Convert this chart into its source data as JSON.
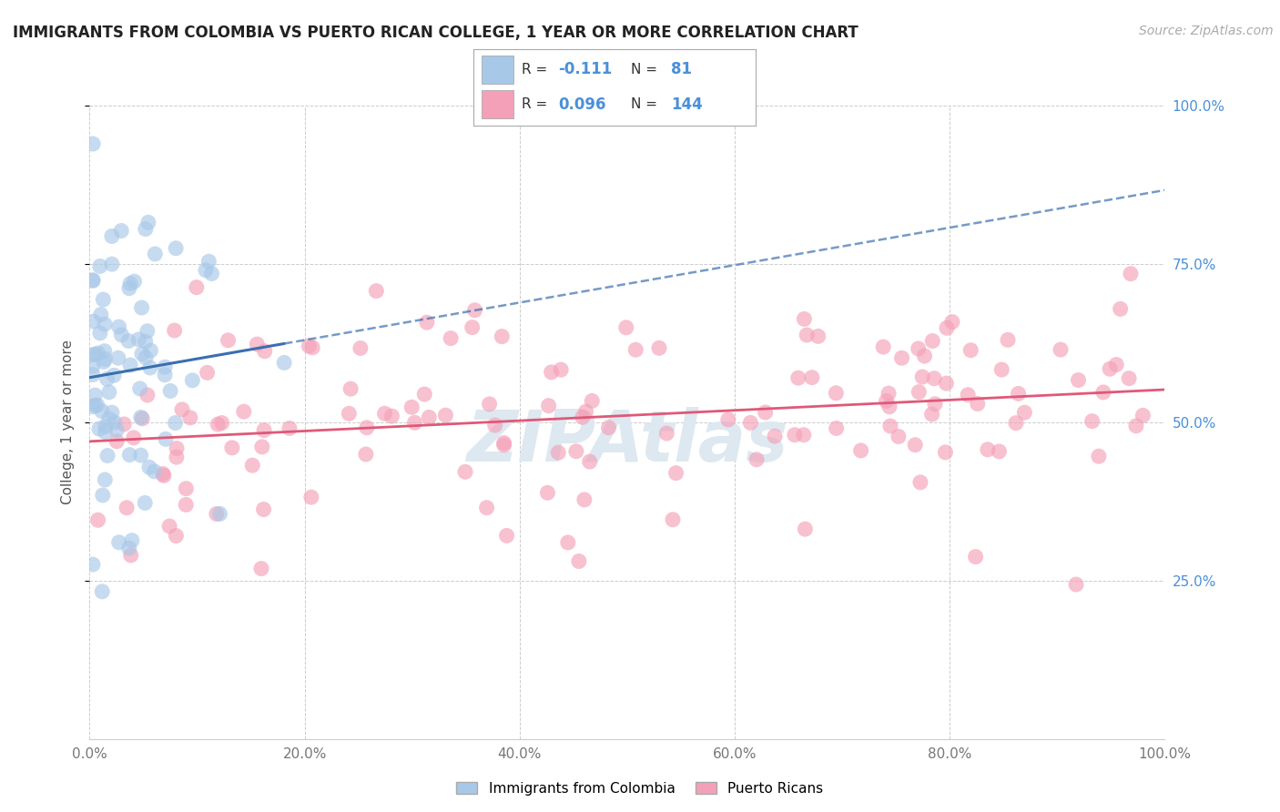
{
  "title": "IMMIGRANTS FROM COLOMBIA VS PUERTO RICAN COLLEGE, 1 YEAR OR MORE CORRELATION CHART",
  "source": "Source: ZipAtlas.com",
  "ylabel": "College, 1 year or more",
  "legend1_label": "Immigrants from Colombia",
  "legend2_label": "Puerto Ricans",
  "R1": "-0.111",
  "N1": "81",
  "R2": "0.096",
  "N2": "144",
  "blue_color": "#a8c8e8",
  "pink_color": "#f4a0b8",
  "line_blue": "#3a6faf",
  "line_pink": "#e05878",
  "text_blue": "#4a90d9",
  "background_color": "#ffffff",
  "grid_color": "#cccccc",
  "xlim": [
    0.0,
    1.0
  ],
  "ylim": [
    0.0,
    1.0
  ],
  "ytick_positions": [
    0.25,
    0.5,
    0.75,
    1.0
  ],
  "xtick_positions": [
    0.0,
    0.2,
    0.4,
    0.6,
    0.8,
    1.0
  ],
  "seed_col": 99,
  "seed_pr": 77
}
